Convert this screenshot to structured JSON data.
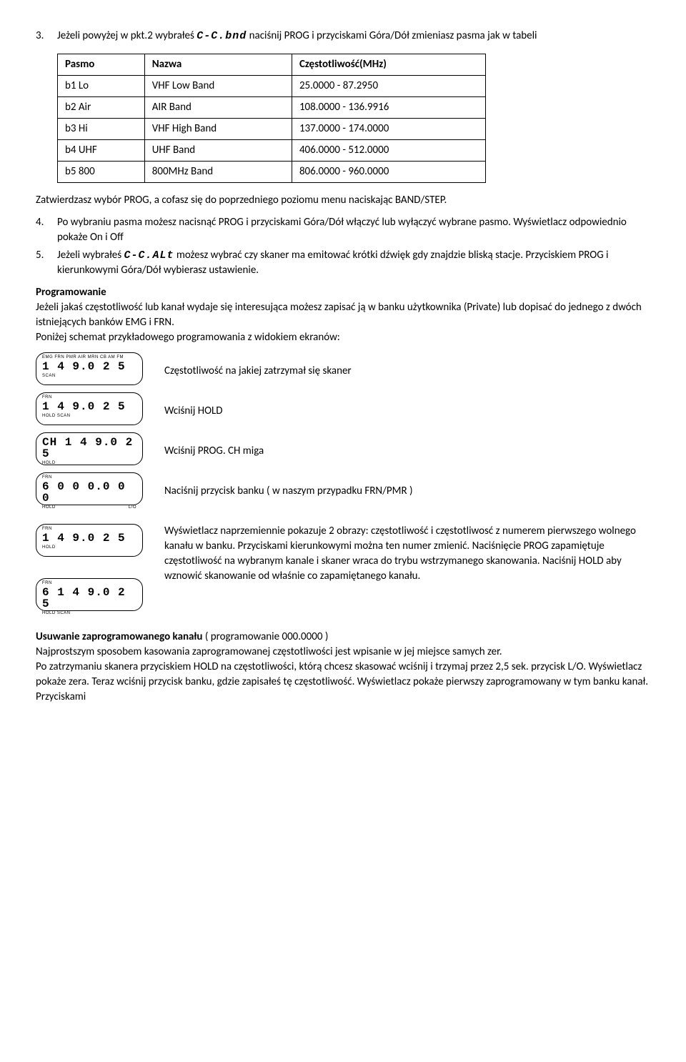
{
  "item3": {
    "num": "3.",
    "text_a": "Jeżeli powyżej w pkt.2 wybrałeś ",
    "lcd": "C-C.bnd",
    "text_b": " naciśnij PROG i przyciskami Góra/Dół zmieniasz pasma jak w tabeli"
  },
  "table": {
    "headers": [
      "Pasmo",
      "Nazwa",
      "Częstotliwość(MHz)"
    ],
    "rows": [
      [
        "b1 Lo",
        "VHF Low Band",
        "25.0000 - 87.2950"
      ],
      [
        "b2 Air",
        "AIR Band",
        "108.0000 - 136.9916"
      ],
      [
        "b3 Hi",
        "VHF High Band",
        "137.0000 - 174.0000"
      ],
      [
        "b4 UHF",
        "UHF Band",
        "406.0000 - 512.0000"
      ],
      [
        "b5 800",
        "800MHz Band",
        "806.0000 - 960.0000"
      ]
    ]
  },
  "after_table": "Zatwierdzasz wybór PROG, a cofasz się do poprzedniego poziomu menu naciskając BAND/STEP.",
  "item4": {
    "num": "4.",
    "text": "Po wybraniu pasma możesz nacisnąć PROG i przyciskami Góra/Dół włączyć lub wyłączyć wybrane pasmo. Wyświetlacz odpowiednio pokaże On i Off"
  },
  "item5": {
    "num": "5.",
    "text_a": "Jeżeli wybrałeś ",
    "lcd": "C-C.ALt",
    "text_b": " możesz wybrać czy skaner ma emitować krótki dźwięk gdy znajdzie bliską stacje. Przyciskiem PROG i kierunkowymi Góra/Dół wybierasz ustawienie."
  },
  "prog": {
    "heading": "Programowanie",
    "p1": "Jeżeli jakaś częstotliwość lub kanał wydaje się interesująca możesz zapisać ją  w banku użytkownika (Private) lub dopisać do jednego z dwóch istniejących banków EMG i FRN.",
    "p2": "Poniżej schemat przykładowego programowania z widokiem ekranów:"
  },
  "screens": [
    {
      "top": "EMG FRN PMR AIR MRN CB AM   FM",
      "mid": " 1 4 9.0 2 5",
      "bot_l": "        SCAN",
      "bot_r": "",
      "desc": "Częstotliwość na jakiej zatrzymał się skaner"
    },
    {
      "top": "     FRN",
      "mid": " 1 4 9.0 2 5",
      "bot_l": "HOLD SCAN",
      "bot_r": "",
      "desc": "Wciśnij HOLD"
    },
    {
      "top": "",
      "mid": "CH 1 4 9.0 2 5",
      "bot_l": "   HOLD",
      "bot_r": "",
      "desc": "Wciśnij PROG. CH miga"
    },
    {
      "top": "     FRN",
      "mid": "6 0 0 0.0 0 0",
      "bot_l": "   HOLD",
      "bot_r": "L/O",
      "desc": "Naciśnij przycisk banku ( w naszym przypadku FRN/PMR )"
    }
  ],
  "screens2": [
    {
      "top": "       FRN",
      "mid": "  1 4 9.0 2 5",
      "bot_l": "   HOLD",
      "bot_r": ""
    },
    {
      "top": "       FRN",
      "mid": "6 1 4 9.0 2 5",
      "bot_l": "   HOLD SCAN",
      "bot_r": ""
    }
  ],
  "screens2_desc": "Wyświetlacz naprzemiennie pokazuje 2 obrazy: częstotliwość i częstotliwosć z numerem pierwszego wolnego kanału w banku. Przyciskami kierunkowymi można ten numer zmienić. Naciśnięcie PROG zapamiętuje częstotliwość na wybranym kanale i skaner wraca do trybu wstrzymanego skanowania. Naciśnij HOLD aby wznowić skanowanie od właśnie co zapamiętanego kanału.",
  "del": {
    "heading": "Usuwanie zaprogramowanego kanału",
    "suffix": " ( programowanie 000.0000 )",
    "p1": "Najprostszym sposobem kasowania zaprogramowanej częstotliwości jest wpisanie w jej miejsce samych zer.",
    "p2": "Po zatrzymaniu skanera przyciskiem HOLD na częstotliwości, którą chcesz skasować wciśnij i trzymaj przez 2,5 sek. przycisk L/O. Wyświetlacz pokaże zera. Teraz wciśnij przycisk banku, gdzie zapisałeś tę częstotliwość. Wyświetlacz pokaże pierwszy zaprogramowany w tym banku kanał. Przyciskami"
  }
}
